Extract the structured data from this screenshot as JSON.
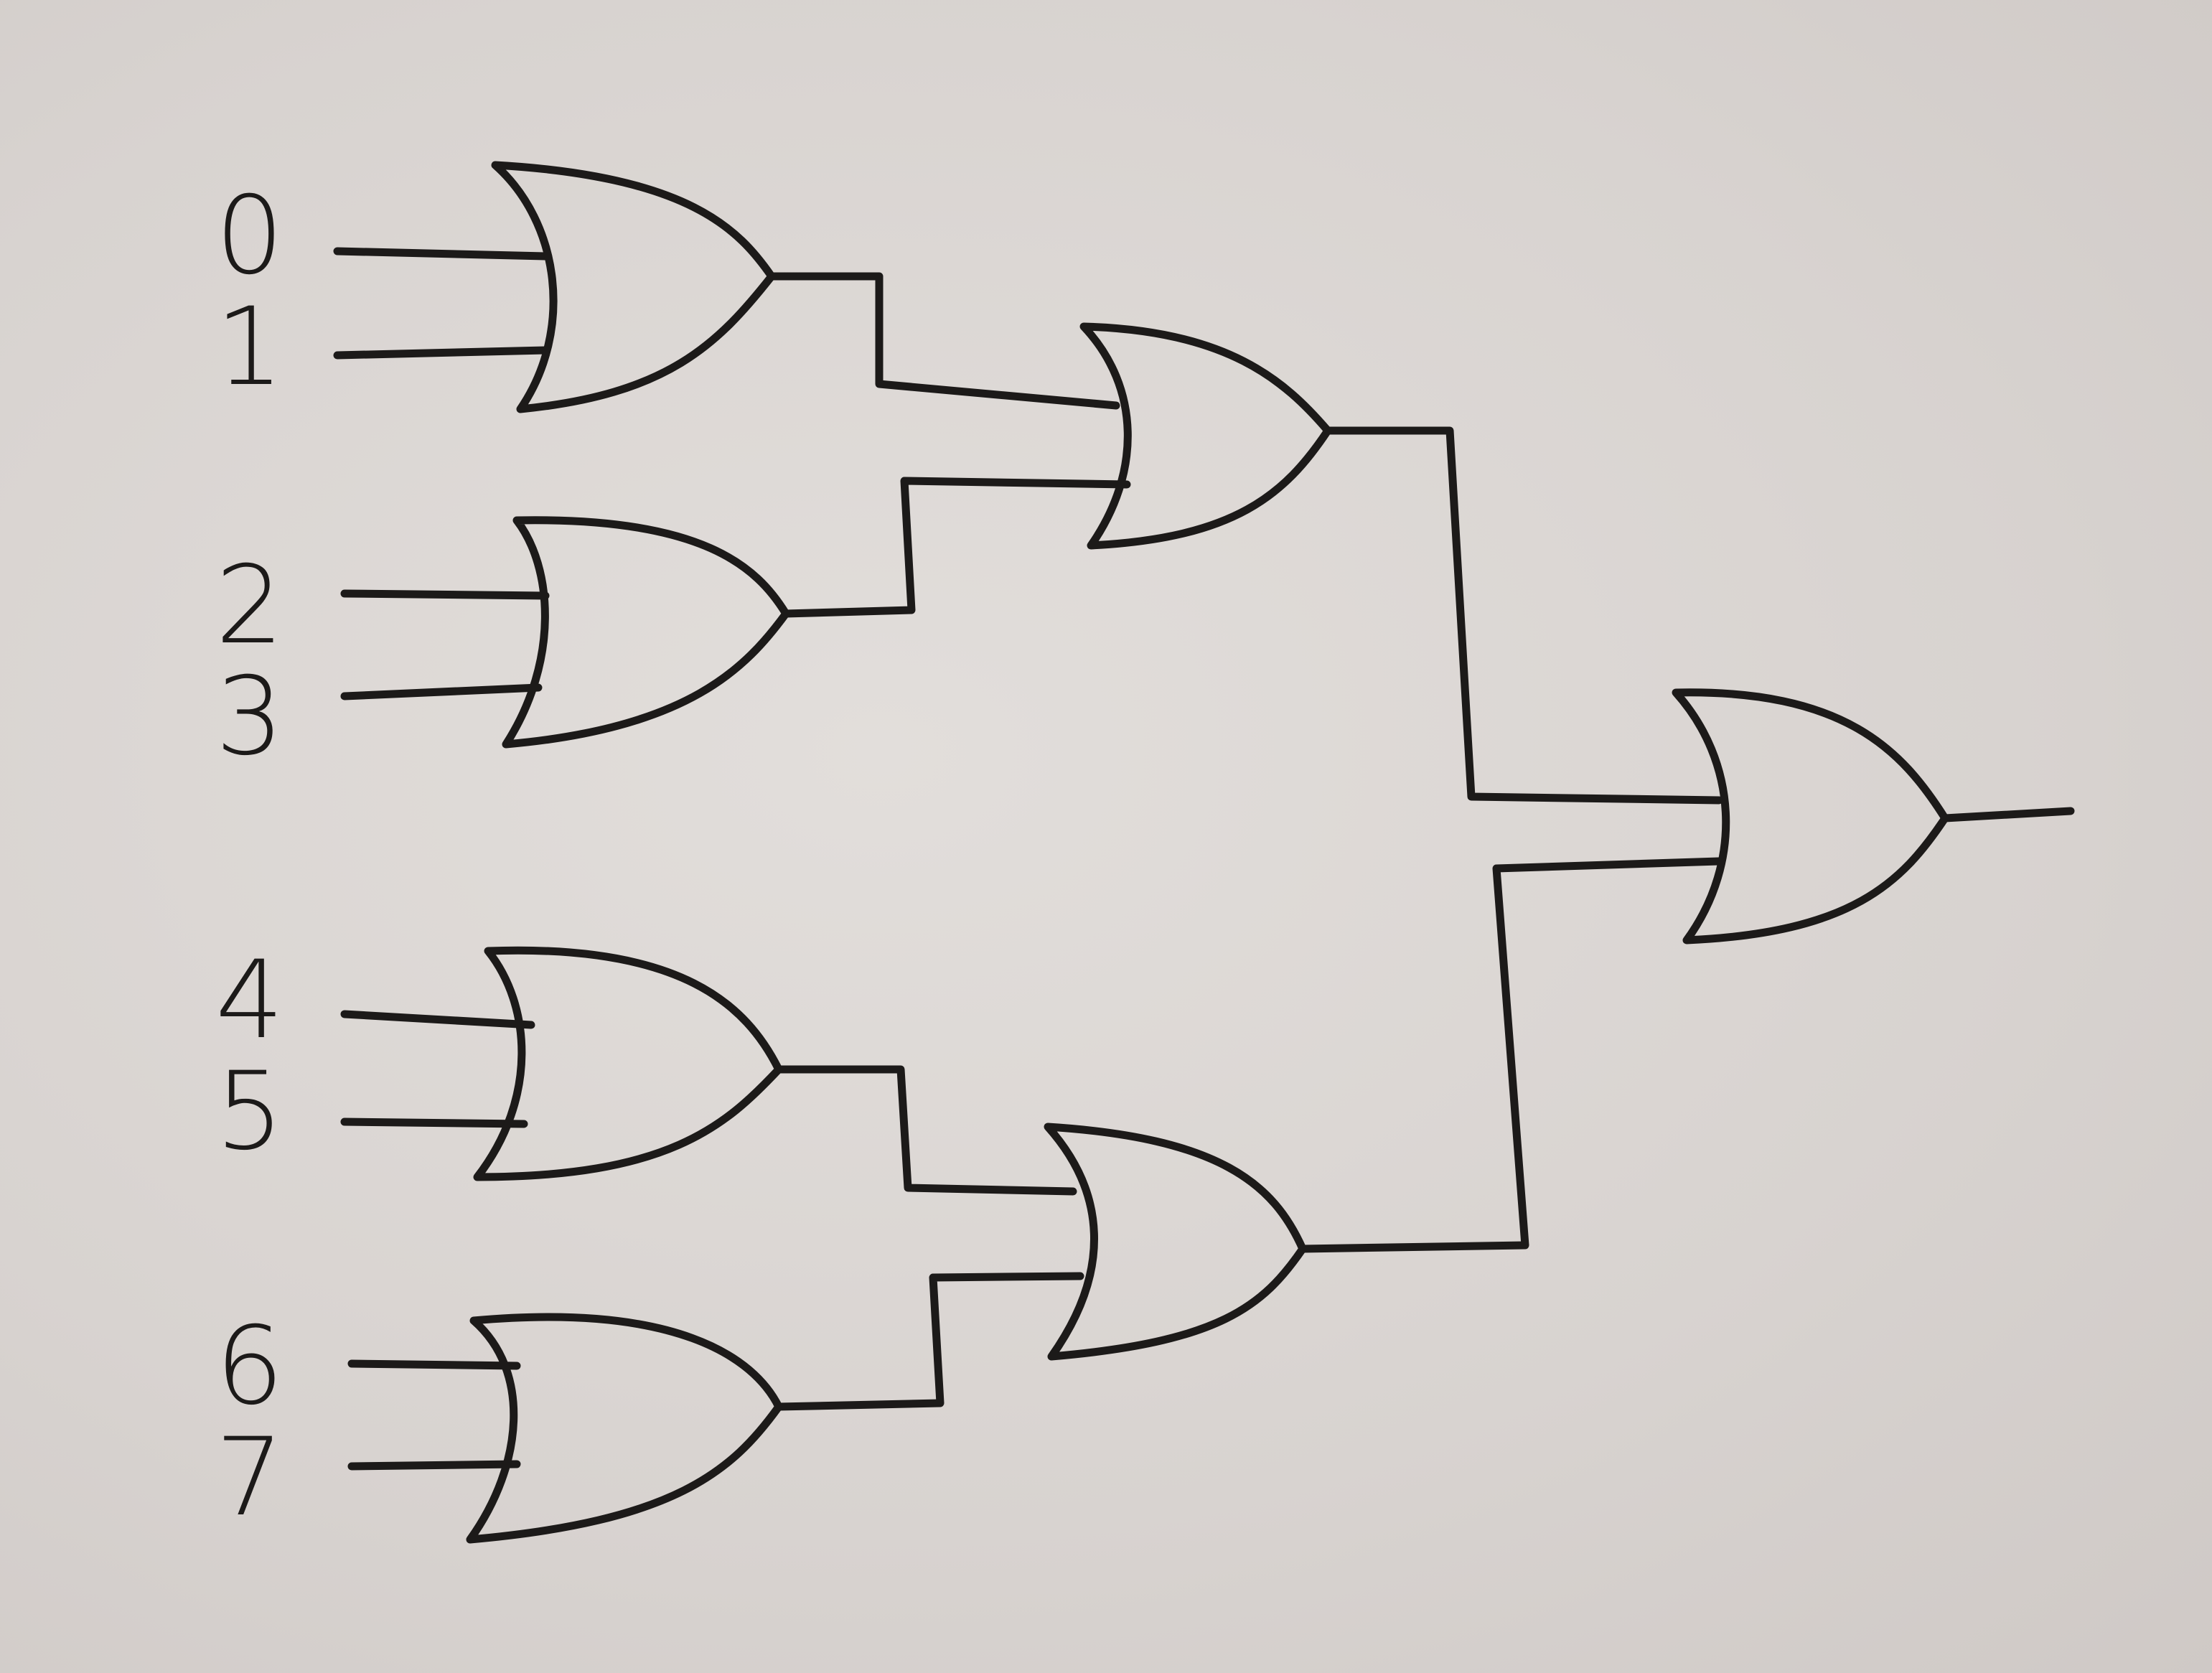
{
  "diagram": {
    "type": "or-gate-tree",
    "gate_type": "OR",
    "inputs": [
      {
        "label": "0"
      },
      {
        "label": "1"
      },
      {
        "label": "2"
      },
      {
        "label": "3"
      },
      {
        "label": "4"
      },
      {
        "label": "5"
      },
      {
        "label": "6"
      },
      {
        "label": "7"
      }
    ],
    "levels": [
      {
        "gates": [
          "g0",
          "g1",
          "g2",
          "g3"
        ],
        "inputs": [
          [
            "0",
            "1"
          ],
          [
            "2",
            "3"
          ],
          [
            "4",
            "5"
          ],
          [
            "6",
            "7"
          ]
        ]
      },
      {
        "gates": [
          "g4",
          "g5"
        ],
        "inputs": [
          [
            "g0",
            "g1"
          ],
          [
            "g2",
            "g3"
          ]
        ]
      },
      {
        "gates": [
          "g6"
        ],
        "inputs": [
          [
            "g4",
            "g5"
          ]
        ]
      }
    ],
    "output": "g6",
    "colors": {
      "ink": "#1c1a19",
      "paper": "#dcd7d4"
    }
  }
}
